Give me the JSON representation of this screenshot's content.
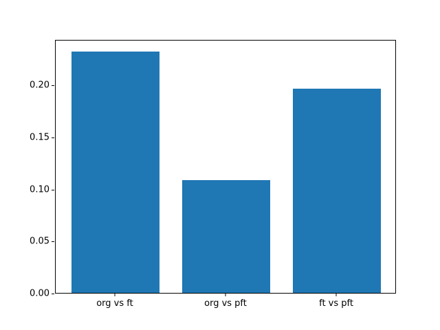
{
  "figure": {
    "background": "#ffffff",
    "spine_color": "#000000"
  },
  "chart_data": {
    "type": "bar",
    "title": "",
    "xlabel": "",
    "ylabel": "",
    "categories": [
      "org vs ft",
      "org vs pft",
      "ft vs pft"
    ],
    "values": [
      0.232,
      0.108,
      0.196
    ],
    "bar_color": "#1f77b4",
    "bar_width": 0.8,
    "yticks": [
      0.0,
      0.05,
      0.1,
      0.15,
      0.2
    ],
    "ytick_decimals": 2,
    "ylim": [
      0,
      0.2436
    ],
    "xlim": [
      -0.54,
      2.54
    ],
    "grid": false,
    "legend_position": "none"
  }
}
